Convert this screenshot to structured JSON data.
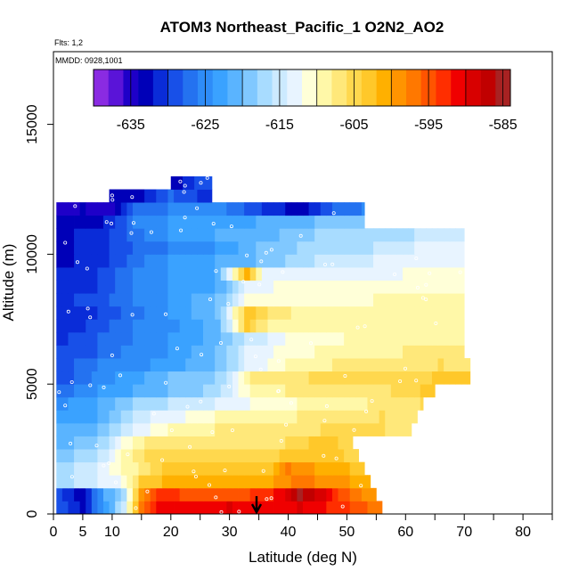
{
  "chart_data": {
    "type": "heatmap",
    "title": "ATOM3 Northeast_Pacific_1 O2N2_AO2",
    "flights_label": "Flts: 1,2",
    "dates_label": "MMDD: 0928,1001",
    "xlabel": "Latitude (deg N)",
    "ylabel": "Altitude (m)",
    "xlim": [
      0,
      85
    ],
    "ylim": [
      0,
      17800
    ],
    "x_ticks": [
      0,
      5,
      10,
      20,
      30,
      40,
      50,
      60,
      70,
      80
    ],
    "x_tick_labels": [
      "0",
      "5",
      "10",
      "20",
      "30",
      "40",
      "50",
      "60",
      "70",
      "80"
    ],
    "x_minor_ticks": [
      0,
      5,
      10,
      15,
      20,
      25,
      30,
      35,
      40,
      45,
      50,
      55,
      60,
      65,
      70,
      75,
      80,
      85
    ],
    "y_ticks": [
      0,
      5000,
      10000,
      15000
    ],
    "y_tick_labels": [
      "0",
      "5000",
      "10000",
      "15000"
    ],
    "colorbar": {
      "min": -640,
      "max": -584,
      "tick_values": [
        -635,
        -625,
        -615,
        -605,
        -595,
        -585
      ],
      "tick_labels": [
        "-635",
        "-625",
        "-615",
        "-605",
        "-595",
        "-585"
      ],
      "colors": [
        "#8a2be2",
        "#5a14d8",
        "#1e00c8",
        "#0000b8",
        "#0a2cd8",
        "#1850e8",
        "#2472f0",
        "#2e8cf8",
        "#3aa2ff",
        "#5ab4ff",
        "#80c8ff",
        "#a8dcff",
        "#cceaff",
        "#e8f4ff",
        "#ffffd8",
        "#fff8a8",
        "#ffe87a",
        "#ffd84e",
        "#ffc82a",
        "#ffb000",
        "#ff9400",
        "#ff7800",
        "#ff5400",
        "#ff2e00",
        "#f00000",
        "#d80000",
        "#c00000",
        "#a82222"
      ]
    },
    "altitude_levels": [
      250,
      750,
      1250,
      1750,
      2250,
      2750,
      3250,
      3750,
      4250,
      4750,
      5250,
      5750,
      6250,
      6750,
      7250,
      7750,
      8250,
      8750,
      9250,
      9750,
      10250,
      10750,
      11250,
      11750,
      12250,
      12750
    ],
    "level_lat_ranges": [
      [
        0.5,
        56
      ],
      [
        0.5,
        55
      ],
      [
        0.5,
        54
      ],
      [
        0.5,
        53
      ],
      [
        0.5,
        52
      ],
      [
        0.5,
        51
      ],
      [
        0.5,
        61
      ],
      [
        0.5,
        62
      ],
      [
        0.5,
        63
      ],
      [
        0.5,
        65
      ],
      [
        0.5,
        71
      ],
      [
        0.5,
        71
      ],
      [
        0.5,
        70
      ],
      [
        0.5,
        70
      ],
      [
        0.5,
        70
      ],
      [
        0.5,
        70
      ],
      [
        0.5,
        70
      ],
      [
        0.5,
        70
      ],
      [
        0.5,
        70
      ],
      [
        0.5,
        70
      ],
      [
        0.5,
        70
      ],
      [
        0.5,
        70
      ],
      [
        0.5,
        53
      ],
      [
        0.5,
        53
      ],
      [
        9.5,
        27
      ],
      [
        20,
        27
      ]
    ],
    "level_profiles": [
      [
        [
          0,
          -628
        ],
        [
          5,
          -633
        ],
        [
          9,
          -623
        ],
        [
          12,
          -615
        ],
        [
          15,
          -597
        ],
        [
          18,
          -592
        ],
        [
          25,
          -591
        ],
        [
          30,
          -590
        ],
        [
          38,
          -591
        ],
        [
          42,
          -590
        ],
        [
          46,
          -592
        ],
        [
          50,
          -594
        ],
        [
          55,
          -597
        ]
      ],
      [
        [
          0,
          -629
        ],
        [
          5,
          -633
        ],
        [
          9,
          -622
        ],
        [
          12,
          -618
        ],
        [
          15,
          -600
        ],
        [
          18,
          -593
        ],
        [
          25,
          -595
        ],
        [
          30,
          -596
        ],
        [
          38,
          -592
        ],
        [
          42,
          -586
        ],
        [
          46,
          -590
        ],
        [
          50,
          -596
        ],
        [
          55,
          -600
        ]
      ],
      [
        [
          0,
          -618
        ],
        [
          8,
          -614
        ],
        [
          12,
          -612
        ],
        [
          15,
          -604
        ],
        [
          20,
          -601
        ],
        [
          30,
          -601
        ],
        [
          38,
          -600
        ],
        [
          42,
          -597
        ],
        [
          46,
          -599
        ],
        [
          50,
          -600
        ],
        [
          54,
          -602
        ]
      ],
      [
        [
          0,
          -618
        ],
        [
          8,
          -614
        ],
        [
          12,
          -610
        ],
        [
          15,
          -608
        ],
        [
          20,
          -603
        ],
        [
          30,
          -603
        ],
        [
          36,
          -604
        ],
        [
          40,
          -598
        ],
        [
          46,
          -601
        ],
        [
          50,
          -602
        ],
        [
          53,
          -603
        ]
      ],
      [
        [
          0,
          -620
        ],
        [
          8,
          -616
        ],
        [
          12,
          -610
        ],
        [
          16,
          -606
        ],
        [
          25,
          -605
        ],
        [
          35,
          -606
        ],
        [
          40,
          -603
        ],
        [
          46,
          -603
        ],
        [
          52,
          -605
        ]
      ],
      [
        [
          0,
          -622
        ],
        [
          8,
          -618
        ],
        [
          12,
          -612
        ],
        [
          16,
          -607
        ],
        [
          25,
          -607
        ],
        [
          35,
          -608
        ],
        [
          40,
          -606
        ],
        [
          46,
          -603
        ],
        [
          51,
          -605
        ]
      ],
      [
        [
          0,
          -622
        ],
        [
          8,
          -620
        ],
        [
          14,
          -614
        ],
        [
          20,
          -610
        ],
        [
          28,
          -608
        ],
        [
          35,
          -608
        ],
        [
          42,
          -607
        ],
        [
          50,
          -605
        ],
        [
          56,
          -606
        ],
        [
          61,
          -607
        ]
      ],
      [
        [
          0,
          -623
        ],
        [
          8,
          -622
        ],
        [
          14,
          -615
        ],
        [
          20,
          -613
        ],
        [
          28,
          -610
        ],
        [
          35,
          -609
        ],
        [
          42,
          -608
        ],
        [
          50,
          -607
        ],
        [
          56,
          -606
        ],
        [
          62,
          -608
        ]
      ],
      [
        [
          0,
          -625
        ],
        [
          8,
          -622
        ],
        [
          14,
          -618
        ],
        [
          20,
          -616
        ],
        [
          28,
          -614
        ],
        [
          34,
          -612
        ],
        [
          42,
          -610
        ],
        [
          50,
          -609
        ],
        [
          58,
          -607
        ],
        [
          63,
          -606
        ]
      ],
      [
        [
          0,
          -628
        ],
        [
          8,
          -624
        ],
        [
          14,
          -622
        ],
        [
          20,
          -620
        ],
        [
          28,
          -617
        ],
        [
          34,
          -609
        ],
        [
          40,
          -608
        ],
        [
          48,
          -607
        ],
        [
          58,
          -606
        ],
        [
          65,
          -603
        ]
      ],
      [
        [
          0,
          -630
        ],
        [
          8,
          -625
        ],
        [
          14,
          -623
        ],
        [
          20,
          -620
        ],
        [
          28,
          -618
        ],
        [
          34,
          -607
        ],
        [
          40,
          -607
        ],
        [
          48,
          -605
        ],
        [
          58,
          -605
        ],
        [
          65,
          -604
        ],
        [
          71,
          -604
        ]
      ],
      [
        [
          0,
          -630
        ],
        [
          8,
          -626
        ],
        [
          14,
          -625
        ],
        [
          20,
          -623
        ],
        [
          28,
          -620
        ],
        [
          33,
          -614
        ],
        [
          40,
          -610
        ],
        [
          48,
          -608
        ],
        [
          58,
          -607
        ],
        [
          66,
          -606
        ],
        [
          71,
          -607
        ]
      ],
      [
        [
          0,
          -630
        ],
        [
          8,
          -628
        ],
        [
          14,
          -625
        ],
        [
          20,
          -624
        ],
        [
          28,
          -620
        ],
        [
          33,
          -614
        ],
        [
          40,
          -611
        ],
        [
          50,
          -609
        ],
        [
          60,
          -608
        ],
        [
          70,
          -608
        ]
      ],
      [
        [
          0,
          -631
        ],
        [
          8,
          -628
        ],
        [
          14,
          -626
        ],
        [
          20,
          -624
        ],
        [
          28,
          -621
        ],
        [
          33,
          -616
        ],
        [
          40,
          -612
        ],
        [
          50,
          -610
        ],
        [
          60,
          -609
        ],
        [
          70,
          -609
        ]
      ],
      [
        [
          0,
          -632
        ],
        [
          8,
          -629
        ],
        [
          14,
          -626
        ],
        [
          20,
          -625
        ],
        [
          28,
          -621
        ],
        [
          33,
          -604
        ],
        [
          36,
          -608
        ],
        [
          45,
          -610
        ],
        [
          55,
          -610
        ],
        [
          70,
          -610
        ]
      ],
      [
        [
          0,
          -632
        ],
        [
          8,
          -630
        ],
        [
          14,
          -627
        ],
        [
          20,
          -624
        ],
        [
          28,
          -620
        ],
        [
          33,
          -603
        ],
        [
          36,
          -606
        ],
        [
          45,
          -610
        ],
        [
          55,
          -610
        ],
        [
          70,
          -610
        ]
      ],
      [
        [
          0,
          -631
        ],
        [
          8,
          -629
        ],
        [
          14,
          -626
        ],
        [
          20,
          -624
        ],
        [
          28,
          -620
        ],
        [
          33,
          -612
        ],
        [
          36,
          -611
        ],
        [
          45,
          -611
        ],
        [
          55,
          -610
        ],
        [
          70,
          -610
        ]
      ],
      [
        [
          0,
          -632
        ],
        [
          8,
          -630
        ],
        [
          14,
          -626
        ],
        [
          20,
          -624
        ],
        [
          28,
          -622
        ],
        [
          33,
          -614
        ],
        [
          38,
          -612
        ],
        [
          50,
          -612
        ],
        [
          60,
          -611
        ],
        [
          70,
          -611
        ]
      ],
      [
        [
          0,
          -632
        ],
        [
          8,
          -630
        ],
        [
          14,
          -626
        ],
        [
          20,
          -624
        ],
        [
          28,
          -622
        ],
        [
          33,
          -602
        ],
        [
          36,
          -614
        ],
        [
          50,
          -613
        ],
        [
          60,
          -612
        ],
        [
          70,
          -612
        ]
      ],
      [
        [
          0,
          -633
        ],
        [
          8,
          -631
        ],
        [
          14,
          -627
        ],
        [
          20,
          -624
        ],
        [
          28,
          -622
        ],
        [
          35,
          -620
        ],
        [
          45,
          -616
        ],
        [
          55,
          -614
        ],
        [
          62,
          -613
        ],
        [
          70,
          -613
        ]
      ],
      [
        [
          0,
          -633
        ],
        [
          8,
          -631
        ],
        [
          14,
          -628
        ],
        [
          20,
          -626
        ],
        [
          28,
          -624
        ],
        [
          35,
          -620
        ],
        [
          45,
          -617
        ],
        [
          55,
          -616
        ],
        [
          62,
          -614
        ],
        [
          70,
          -614
        ]
      ],
      [
        [
          0,
          -633
        ],
        [
          8,
          -631
        ],
        [
          14,
          -627
        ],
        [
          20,
          -624
        ],
        [
          28,
          -622
        ],
        [
          35,
          -621
        ],
        [
          45,
          -618
        ],
        [
          55,
          -617
        ],
        [
          62,
          -616
        ],
        [
          70,
          -615
        ]
      ],
      [
        [
          0,
          -634
        ],
        [
          8,
          -633
        ],
        [
          14,
          -626
        ],
        [
          20,
          -624
        ],
        [
          28,
          -623
        ],
        [
          35,
          -622
        ],
        [
          45,
          -620
        ],
        [
          53,
          -620
        ]
      ],
      [
        [
          0,
          -636
        ],
        [
          5,
          -634
        ],
        [
          10,
          -635
        ],
        [
          14,
          -628
        ],
        [
          20,
          -626
        ],
        [
          28,
          -625
        ],
        [
          35,
          -630
        ],
        [
          42,
          -633
        ],
        [
          48,
          -628
        ],
        [
          53,
          -626
        ]
      ],
      [
        [
          9.5,
          -632
        ],
        [
          15,
          -633
        ],
        [
          20,
          -628
        ],
        [
          24,
          -630
        ],
        [
          27,
          -631
        ]
      ],
      [
        [
          20,
          -634
        ],
        [
          24,
          -630
        ],
        [
          27,
          -628
        ]
      ]
    ]
  }
}
